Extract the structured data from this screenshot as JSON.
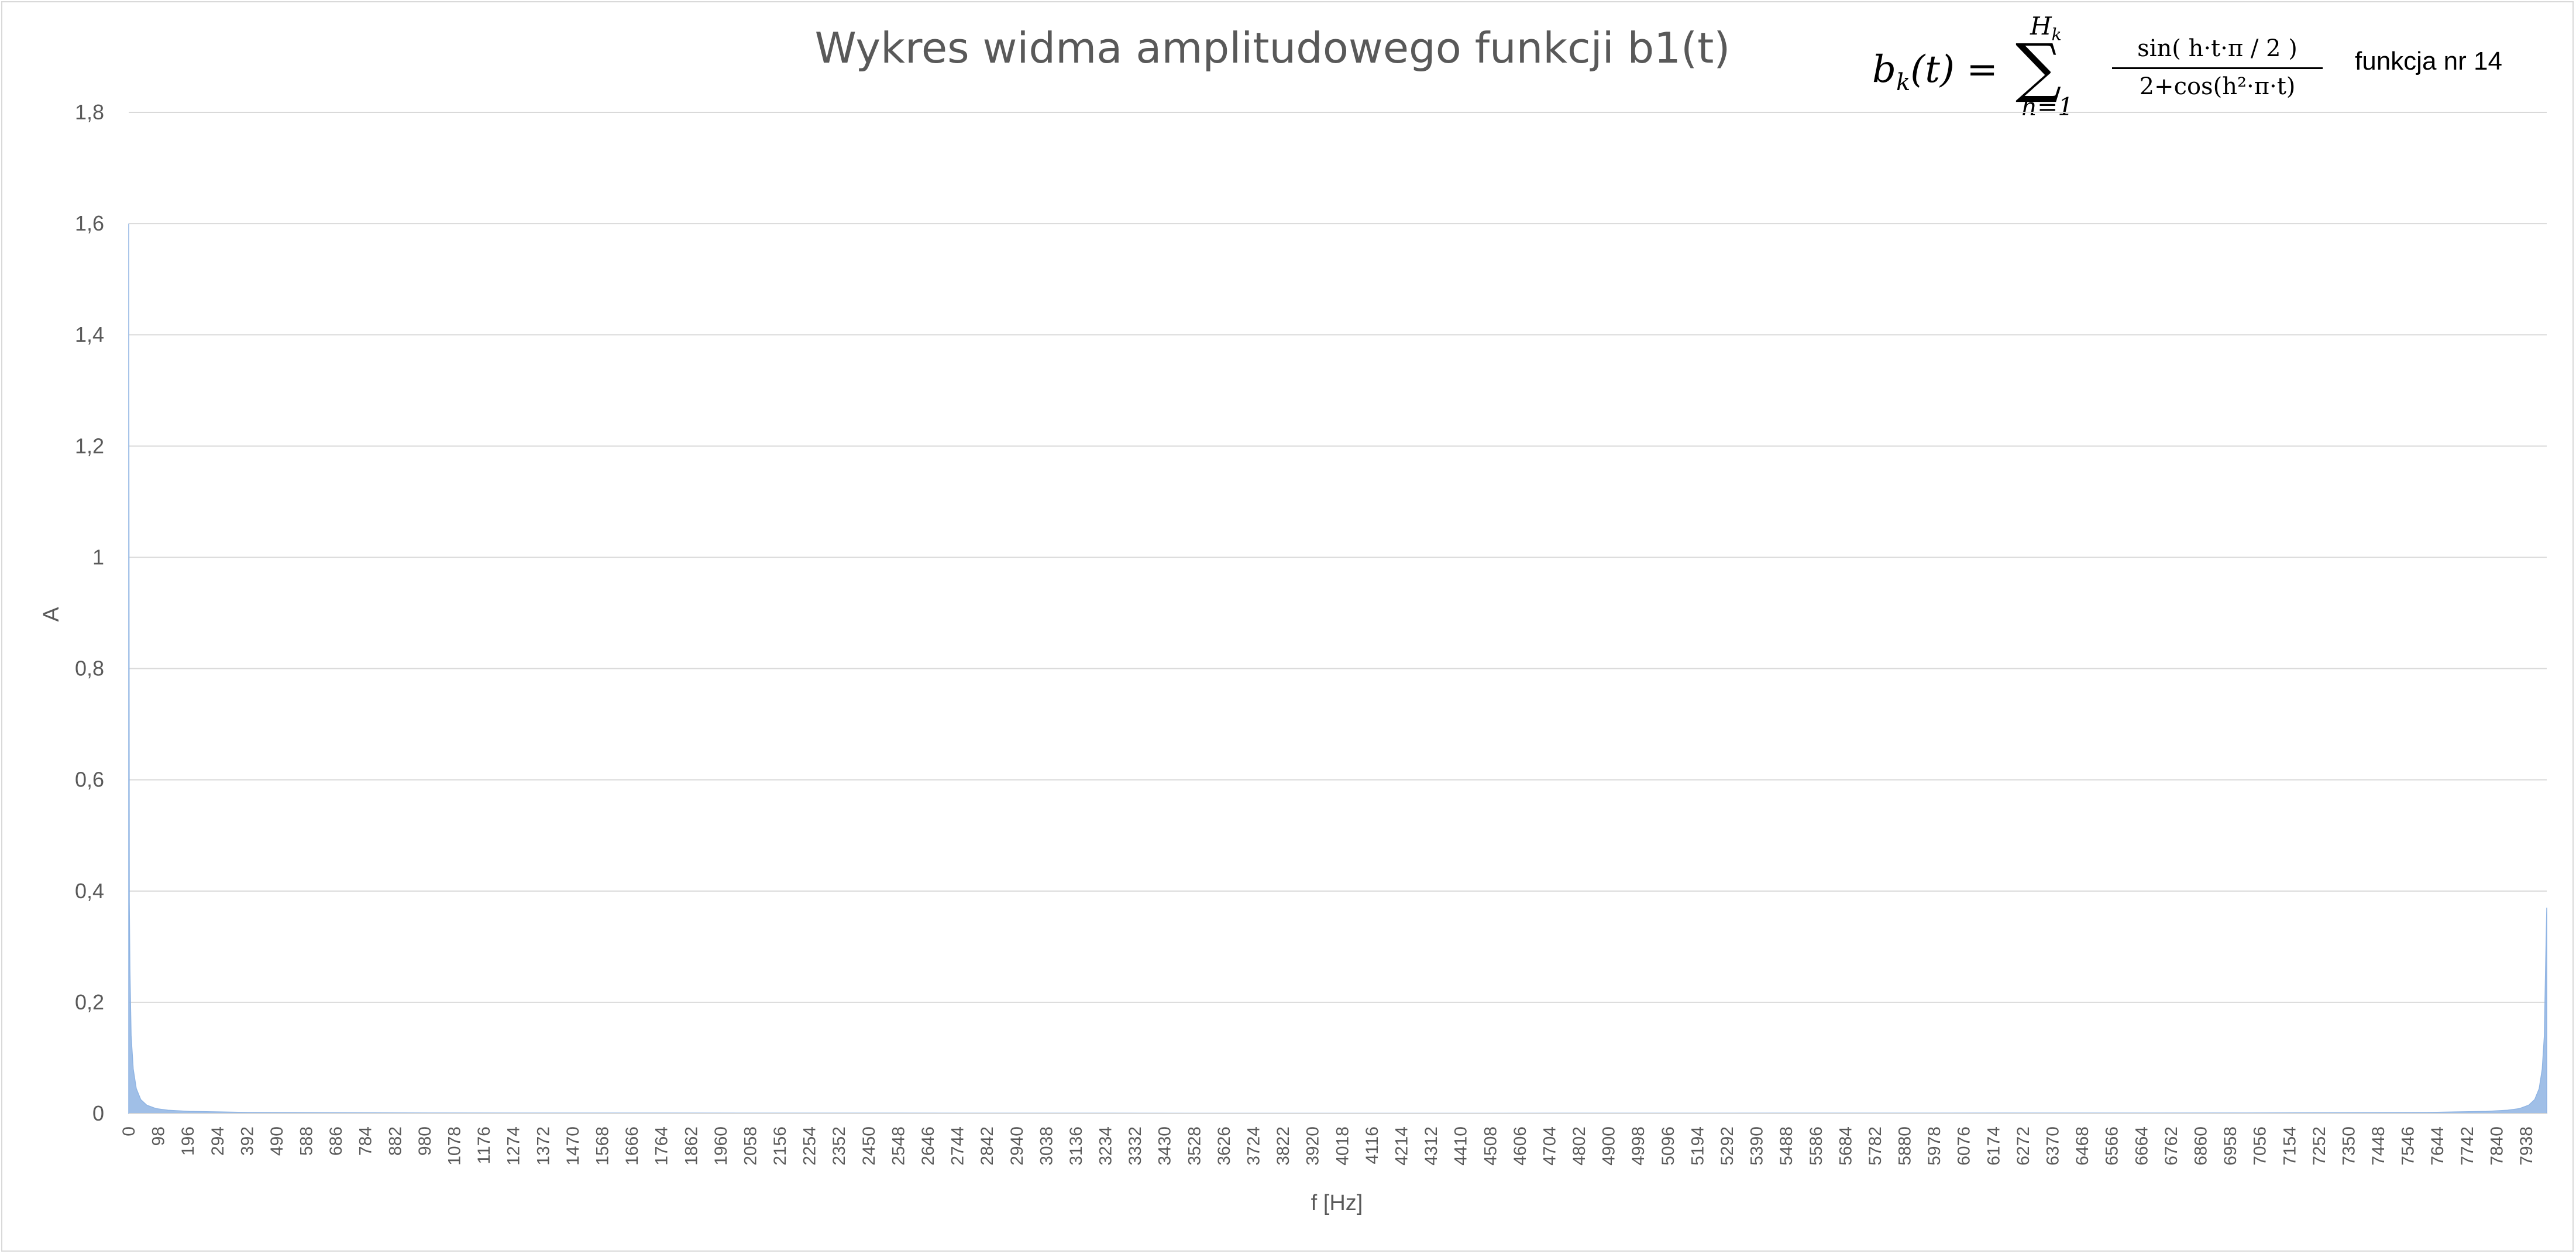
{
  "chart_data": {
    "type": "area",
    "title": "Wykres widma amplitudowego funkcji b1(t)",
    "xlabel": "f [Hz]",
    "ylabel": "A",
    "ylim": [
      0,
      1.8
    ],
    "xlim": [
      0,
      8000
    ],
    "y_ticks": [
      "0",
      "0,2",
      "0,4",
      "0,6",
      "0,8",
      "1",
      "1,2",
      "1,4",
      "1,6",
      "1,8"
    ],
    "x_ticks": [
      "0",
      "98",
      "196",
      "294",
      "392",
      "490",
      "588",
      "686",
      "784",
      "882",
      "980",
      "1078",
      "1176",
      "1274",
      "1372",
      "1470",
      "1568",
      "1666",
      "1764",
      "1862",
      "1960",
      "2058",
      "2156",
      "2254",
      "2352",
      "2450",
      "2548",
      "2646",
      "2744",
      "2842",
      "2940",
      "3038",
      "3136",
      "3234",
      "3332",
      "3430",
      "3528",
      "3626",
      "3724",
      "3822",
      "3920",
      "4018",
      "4116",
      "4214",
      "4312",
      "4410",
      "4508",
      "4606",
      "4704",
      "4802",
      "4900",
      "4998",
      "5096",
      "5194",
      "5292",
      "5390",
      "5488",
      "5586",
      "5684",
      "5782",
      "5880",
      "5978",
      "6076",
      "6174",
      "6272",
      "6370",
      "6468",
      "6566",
      "6664",
      "6762",
      "6860",
      "6958",
      "7056",
      "7154",
      "7252",
      "7350",
      "7448",
      "7546",
      "7644",
      "7742",
      "7840",
      "7938"
    ],
    "grid": true,
    "series": [
      {
        "color": "#8fb4e3",
        "x": [
          0,
          2,
          4,
          8,
          15,
          25,
          40,
          60,
          90,
          130,
          200,
          400,
          1000,
          4000,
          7000,
          7600,
          7800,
          7870,
          7910,
          7940,
          7960,
          7975,
          7985,
          7992,
          7996,
          8000
        ],
        "values": [
          1.6,
          0.38,
          0.26,
          0.14,
          0.08,
          0.045,
          0.025,
          0.015,
          0.009,
          0.006,
          0.004,
          0.002,
          0.001,
          0.0005,
          0.001,
          0.002,
          0.004,
          0.006,
          0.009,
          0.015,
          0.025,
          0.045,
          0.08,
          0.14,
          0.26,
          0.37
        ]
      }
    ]
  },
  "formula": {
    "lhs": "b",
    "lhs_sub": "k",
    "lhs_arg": "(t) =",
    "sum_symbol": "∑",
    "sum_upper": "H",
    "sum_upper_sub": "k",
    "sum_lower": "h=1",
    "numerator": "sin( h·t·π / 2 )",
    "denominator": "2+cos(h²·π·t)"
  },
  "function_label": "funkcja nr 14"
}
